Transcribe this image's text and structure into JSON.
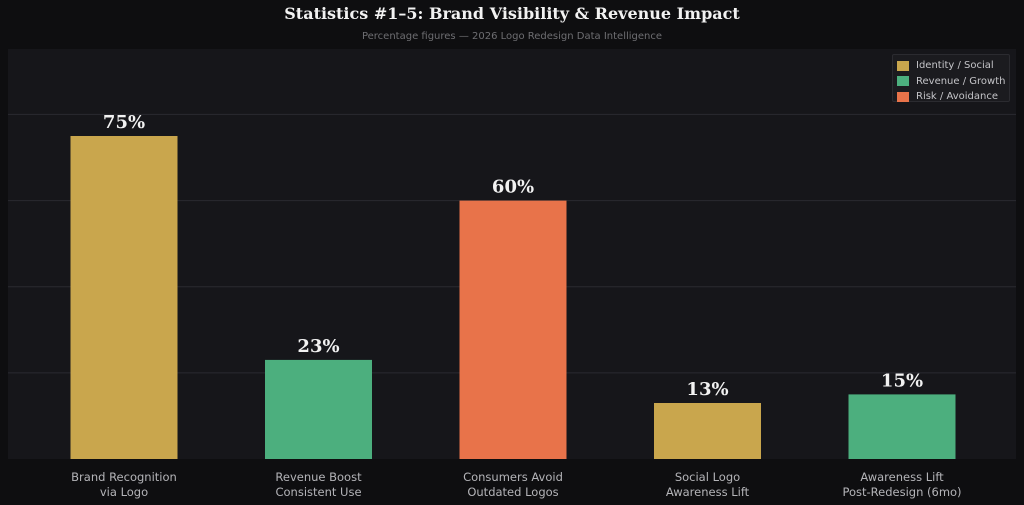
{
  "chart_data": {
    "type": "bar",
    "title": "Statistics #1–5: Brand Visibility & Revenue Impact",
    "subtitle": "Percentage figures — 2026 Logo Redesign Data Intelligence",
    "xlabel": "",
    "ylabel": "",
    "ylim": [
      0,
      80
    ],
    "grid": true,
    "legend_position": "top-right",
    "categories": [
      "Brand Recognition\nvia Logo",
      "Revenue Boost\nConsistent Use",
      "Consumers Avoid\nOutdated Logos",
      "Social Logo\nAwareness Lift",
      "Awareness Lift\nPost-Redesign (6mo)"
    ],
    "values": [
      75,
      23,
      60,
      13,
      15
    ],
    "value_labels": [
      "75%",
      "23%",
      "60%",
      "13%",
      "15%"
    ],
    "bar_groups": [
      "identity",
      "revenue",
      "risk",
      "identity",
      "revenue"
    ],
    "legend": [
      {
        "key": "identity",
        "label": "Identity / Social",
        "color": "#c9a64d"
      },
      {
        "key": "revenue",
        "label": "Revenue / Growth",
        "color": "#4caf7e"
      },
      {
        "key": "risk",
        "label": "Risk / Avoidance",
        "color": "#e8734a"
      }
    ]
  },
  "colors": {
    "background": "#0e0e10",
    "plot_background": "#16161a",
    "gridline": "#2a2a30",
    "value_label": "#f2f2f2",
    "tick_label": "#b4b4b8"
  }
}
